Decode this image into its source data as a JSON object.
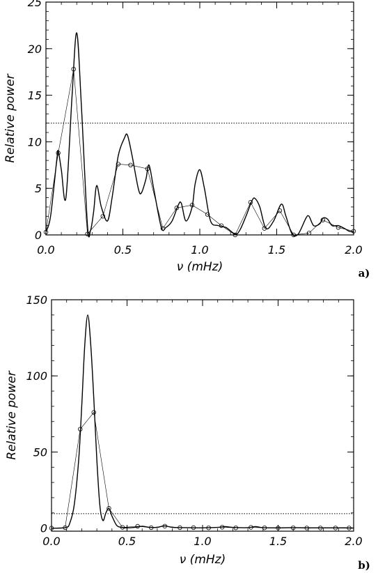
{
  "chart_data": [
    {
      "type": "line",
      "panel_label": "a)",
      "xlabel": "ν (mHz)",
      "ylabel": "Relative power",
      "xlim": [
        0.0,
        2.0
      ],
      "ylim": [
        0,
        25
      ],
      "x_ticks": [
        "0.0",
        "0.5",
        "1.0",
        "1.5",
        "2.0"
      ],
      "y_ticks": [
        "0",
        "5",
        "10",
        "15",
        "20",
        "25"
      ],
      "x_tick_values": [
        0.0,
        0.5,
        1.0,
        1.5,
        2.0
      ],
      "y_tick_values": [
        0,
        5,
        10,
        15,
        20,
        25
      ],
      "threshold": 12,
      "series": [
        {
          "style": "thick-smooth",
          "x": [
            0.0,
            0.03,
            0.07,
            0.08,
            0.1,
            0.13,
            0.17,
            0.2,
            0.23,
            0.27,
            0.29,
            0.31,
            0.33,
            0.36,
            0.4,
            0.43,
            0.47,
            0.51,
            0.53,
            0.56,
            0.6,
            0.62,
            0.65,
            0.67,
            0.7,
            0.75,
            0.78,
            0.82,
            0.86,
            0.88,
            0.91,
            0.95,
            0.97,
            1.0,
            1.03,
            1.07,
            1.12,
            1.17,
            1.23,
            1.26,
            1.3,
            1.34,
            1.36,
            1.39,
            1.43,
            1.48,
            1.53,
            1.56,
            1.6,
            1.64,
            1.69,
            1.71,
            1.74,
            1.78,
            1.8,
            1.83,
            1.86,
            1.9,
            1.94,
            1.97,
            2.0
          ],
          "y": [
            0.3,
            2.0,
            8.0,
            9.0,
            7.0,
            4.0,
            15.0,
            21.7,
            14.0,
            1.0,
            0.5,
            2.5,
            5.3,
            3.0,
            1.5,
            4.0,
            8.5,
            10.4,
            10.7,
            8.5,
            5.0,
            4.5,
            6.0,
            7.5,
            5.0,
            0.8,
            0.8,
            1.5,
            3.2,
            3.4,
            1.5,
            3.0,
            5.5,
            7.0,
            5.0,
            1.5,
            1.0,
            0.8,
            0.1,
            0.5,
            2.0,
            3.7,
            3.9,
            3.0,
            0.7,
            1.5,
            3.3,
            2.0,
            0.1,
            0.1,
            1.8,
            2.0,
            1.0,
            1.2,
            1.8,
            1.7,
            1.0,
            1.0,
            0.7,
            0.4,
            0.3
          ]
        },
        {
          "style": "thin-markers",
          "x": [
            0.0,
            0.08,
            0.18,
            0.27,
            0.37,
            0.47,
            0.55,
            0.66,
            0.76,
            0.85,
            0.95,
            1.05,
            1.14,
            1.23,
            1.33,
            1.42,
            1.52,
            1.61,
            1.71,
            1.8,
            1.9,
            2.0
          ],
          "y": [
            0.3,
            8.8,
            17.8,
            0.1,
            2.0,
            7.6,
            7.5,
            7.1,
            0.7,
            2.9,
            3.2,
            2.2,
            1.0,
            0.0,
            3.5,
            0.7,
            2.6,
            0.0,
            0.2,
            1.6,
            0.8,
            0.4
          ]
        }
      ]
    },
    {
      "type": "line",
      "panel_label": "b)",
      "xlabel": "ν (mHz)",
      "ylabel": "Relative power",
      "xlim": [
        0.0,
        2.0
      ],
      "ylim": [
        -2,
        150
      ],
      "x_ticks": [
        "0.0",
        "0.5",
        "1.0",
        "1.5",
        "2.0"
      ],
      "y_ticks": [
        "0",
        "50",
        "100",
        "150"
      ],
      "x_tick_values": [
        0.0,
        0.5,
        1.0,
        1.5,
        2.0
      ],
      "y_tick_values": [
        0,
        50,
        100,
        150
      ],
      "threshold": 9.5,
      "series": [
        {
          "style": "thick-smooth",
          "x": [
            0.0,
            0.05,
            0.1,
            0.12,
            0.15,
            0.18,
            0.2,
            0.22,
            0.24,
            0.26,
            0.28,
            0.3,
            0.32,
            0.34,
            0.36,
            0.38,
            0.4,
            0.43,
            0.46,
            0.5,
            0.55,
            0.6,
            0.65,
            0.7,
            0.75,
            0.8,
            0.9,
            1.0,
            1.1,
            1.15,
            1.2,
            1.3,
            1.35,
            1.4,
            1.5,
            1.6,
            1.7,
            1.8,
            1.9,
            2.0
          ],
          "y": [
            0.0,
            0.0,
            0.5,
            3.0,
            15.0,
            45.0,
            80.0,
            120.0,
            140.0,
            120.0,
            85.0,
            45.0,
            15.0,
            5.0,
            10.0,
            13.0,
            8.0,
            2.0,
            0.5,
            0.2,
            0.5,
            1.2,
            0.5,
            0.5,
            1.5,
            0.5,
            0.3,
            0.2,
            0.5,
            1.0,
            0.5,
            0.3,
            1.0,
            0.3,
            0.2,
            0.3,
            0.2,
            0.2,
            0.2,
            0.1
          ]
        },
        {
          "style": "thin-markers",
          "x": [
            0.0,
            0.09,
            0.19,
            0.28,
            0.38,
            0.47,
            0.57,
            0.66,
            0.75,
            0.85,
            0.94,
            1.04,
            1.13,
            1.22,
            1.32,
            1.41,
            1.5,
            1.6,
            1.69,
            1.78,
            1.88,
            1.97
          ],
          "y": [
            0.0,
            0.3,
            65.0,
            76.0,
            13.0,
            0.5,
            1.2,
            0.3,
            1.3,
            0.3,
            0.3,
            0.2,
            0.6,
            0.2,
            0.5,
            0.2,
            0.1,
            0.2,
            0.1,
            0.1,
            0.1,
            0.1
          ]
        }
      ]
    }
  ]
}
